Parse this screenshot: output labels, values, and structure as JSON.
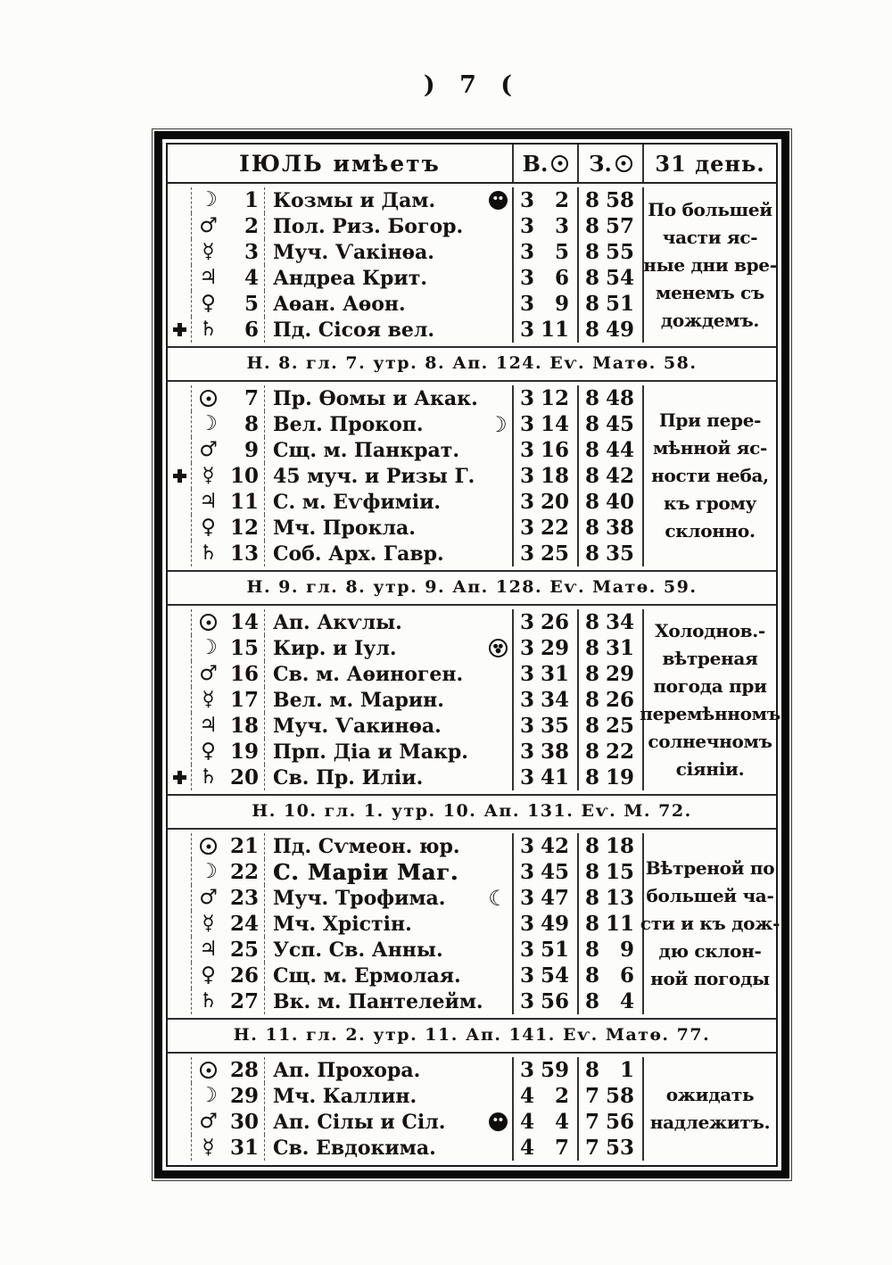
{
  "page": {
    "number": ") 7 ("
  },
  "header": {
    "month": "ІЮЛЬ имѣетъ",
    "rise": "В.",
    "set": "З.",
    "days": "31 день."
  },
  "icons": {
    "moon": "☽",
    "mars": "♂",
    "mercury": "☿",
    "jupiter": "♃",
    "venus": "♀",
    "saturn": "♄",
    "first_quarter": "☽",
    "last_quarter": "☾"
  },
  "weeks": [
    {
      "days": [
        {
          "cross": false,
          "planet": "moon",
          "day": "1",
          "name": "Козмы и Дам.",
          "moon": "new",
          "rise_h": "3",
          "rise_m": "2",
          "set_h": "8",
          "set_m": "58"
        },
        {
          "cross": false,
          "planet": "mars",
          "day": "2",
          "name": "Пол. Риз. Богор.",
          "moon": null,
          "rise_h": "3",
          "rise_m": "3",
          "set_h": "8",
          "set_m": "57"
        },
        {
          "cross": false,
          "planet": "mercury",
          "day": "3",
          "name": "Муч. Ѵакінѳа.",
          "moon": null,
          "rise_h": "3",
          "rise_m": "5",
          "set_h": "8",
          "set_m": "55"
        },
        {
          "cross": false,
          "planet": "jupiter",
          "day": "4",
          "name": "Андреа Крит.",
          "moon": null,
          "rise_h": "3",
          "rise_m": "6",
          "set_h": "8",
          "set_m": "54"
        },
        {
          "cross": false,
          "planet": "venus",
          "day": "5",
          "name": "Аѳан. Аѳон.",
          "moon": null,
          "rise_h": "3",
          "rise_m": "9",
          "set_h": "8",
          "set_m": "51"
        },
        {
          "cross": true,
          "planet": "saturn",
          "day": "6",
          "name": "Пд. Сісоя вел.",
          "moon": null,
          "rise_h": "3",
          "rise_m": "11",
          "set_h": "8",
          "set_m": "49"
        }
      ],
      "weather": [
        "По большей",
        "части яс-",
        "ные дни вре-",
        "менемъ съ",
        "дождемъ."
      ],
      "note": "Н. 8. гл. 7. утр. 8. Ап. 124. Еѵ. Матѳ. 58."
    },
    {
      "days": [
        {
          "cross": false,
          "planet": "sun",
          "day": "7",
          "name": "Пр. Ѳомы и Акак.",
          "moon": null,
          "rise_h": "3",
          "rise_m": "12",
          "set_h": "8",
          "set_m": "48"
        },
        {
          "cross": false,
          "planet": "moon",
          "day": "8",
          "name": "Вел. Прокоп.",
          "moon": "first",
          "rise_h": "3",
          "rise_m": "14",
          "set_h": "8",
          "set_m": "45"
        },
        {
          "cross": false,
          "planet": "mars",
          "day": "9",
          "name": "Сщ. м. Панкрат.",
          "moon": null,
          "rise_h": "3",
          "rise_m": "16",
          "set_h": "8",
          "set_m": "44"
        },
        {
          "cross": true,
          "planet": "mercury",
          "day": "10",
          "name": "45 муч. и Ризы Г.",
          "moon": null,
          "rise_h": "3",
          "rise_m": "18",
          "set_h": "8",
          "set_m": "42"
        },
        {
          "cross": false,
          "planet": "jupiter",
          "day": "11",
          "name": "С. м. Еѵфиміи.",
          "moon": null,
          "rise_h": "3",
          "rise_m": "20",
          "set_h": "8",
          "set_m": "40"
        },
        {
          "cross": false,
          "planet": "venus",
          "day": "12",
          "name": "Мч. Прокла.",
          "moon": null,
          "rise_h": "3",
          "rise_m": "22",
          "set_h": "8",
          "set_m": "38"
        },
        {
          "cross": false,
          "planet": "saturn",
          "day": "13",
          "name": "Соб. Арх. Гавр.",
          "moon": null,
          "rise_h": "3",
          "rise_m": "25",
          "set_h": "8",
          "set_m": "35"
        }
      ],
      "weather": [
        "При пере-",
        "мѣнной яс-",
        "ности неба,",
        "къ грому",
        "склонно."
      ],
      "note": "Н. 9. гл. 8. утр. 9. Ап. 128. Еѵ. Матѳ. 59."
    },
    {
      "days": [
        {
          "cross": false,
          "planet": "sun",
          "day": "14",
          "name": "Ап. Акѵлы.",
          "moon": null,
          "rise_h": "3",
          "rise_m": "26",
          "set_h": "8",
          "set_m": "34"
        },
        {
          "cross": false,
          "planet": "moon",
          "day": "15",
          "name": "Кир. и Іул.",
          "moon": "full",
          "rise_h": "3",
          "rise_m": "29",
          "set_h": "8",
          "set_m": "31"
        },
        {
          "cross": false,
          "planet": "mars",
          "day": "16",
          "name": "Св. м. Аѳиноген.",
          "moon": null,
          "rise_h": "3",
          "rise_m": "31",
          "set_h": "8",
          "set_m": "29"
        },
        {
          "cross": false,
          "planet": "mercury",
          "day": "17",
          "name": "Вел. м. Марин.",
          "moon": null,
          "rise_h": "3",
          "rise_m": "34",
          "set_h": "8",
          "set_m": "26"
        },
        {
          "cross": false,
          "planet": "jupiter",
          "day": "18",
          "name": "Муч. Ѵакинѳа.",
          "moon": null,
          "rise_h": "3",
          "rise_m": "35",
          "set_h": "8",
          "set_m": "25"
        },
        {
          "cross": false,
          "planet": "venus",
          "day": "19",
          "name": "Прп. Діа и Макр.",
          "moon": null,
          "rise_h": "3",
          "rise_m": "38",
          "set_h": "8",
          "set_m": "22"
        },
        {
          "cross": true,
          "planet": "saturn",
          "day": "20",
          "name": "Св. Пр. Иліи.",
          "moon": null,
          "rise_h": "3",
          "rise_m": "41",
          "set_h": "8",
          "set_m": "19"
        }
      ],
      "weather": [
        "Холоднов.-",
        "вѣтреная",
        "погода при",
        "перемѣнномъ",
        "солнечномъ",
        "сіяніи."
      ],
      "note": "Н. 10. гл. 1. утр. 10. Ап. 131. Еѵ. М. 72."
    },
    {
      "days": [
        {
          "cross": false,
          "planet": "sun",
          "day": "21",
          "name": "Пд. Сѵмеон. юр.",
          "moon": null,
          "rise_h": "3",
          "rise_m": "42",
          "set_h": "8",
          "set_m": "18"
        },
        {
          "cross": false,
          "planet": "moon",
          "day": "22",
          "name": "С. Маріи Маг.",
          "moon": null,
          "bold": true,
          "rise_h": "3",
          "rise_m": "45",
          "set_h": "8",
          "set_m": "15"
        },
        {
          "cross": false,
          "planet": "mars",
          "day": "23",
          "name": "Муч. Трофима.",
          "moon": "last",
          "rise_h": "3",
          "rise_m": "47",
          "set_h": "8",
          "set_m": "13"
        },
        {
          "cross": false,
          "planet": "mercury",
          "day": "24",
          "name": "Мч. Хрістін.",
          "moon": null,
          "rise_h": "3",
          "rise_m": "49",
          "set_h": "8",
          "set_m": "11"
        },
        {
          "cross": false,
          "planet": "jupiter",
          "day": "25",
          "name": "Усп. Св. Анны.",
          "moon": null,
          "rise_h": "3",
          "rise_m": "51",
          "set_h": "8",
          "set_m": "9"
        },
        {
          "cross": false,
          "planet": "venus",
          "day": "26",
          "name": "Сщ. м. Ермолая.",
          "moon": null,
          "rise_h": "3",
          "rise_m": "54",
          "set_h": "8",
          "set_m": "6"
        },
        {
          "cross": false,
          "planet": "saturn",
          "day": "27",
          "name": "Вк. м. Пантелейм.",
          "moon": null,
          "rise_h": "3",
          "rise_m": "56",
          "set_h": "8",
          "set_m": "4"
        }
      ],
      "weather": [
        "Вѣтреной по",
        "большей ча-",
        "сти и къ дож-",
        "дю склон-",
        "ной погоды"
      ],
      "note": "Н. 11. гл. 2. утр. 11. Ап. 141. Еѵ. Матѳ. 77."
    },
    {
      "days": [
        {
          "cross": false,
          "planet": "sun",
          "day": "28",
          "name": "Ап. Прохора.",
          "moon": null,
          "rise_h": "3",
          "rise_m": "59",
          "set_h": "8",
          "set_m": "1"
        },
        {
          "cross": false,
          "planet": "moon",
          "day": "29",
          "name": "Мч. Каллин.",
          "moon": null,
          "rise_h": "4",
          "rise_m": "2",
          "set_h": "7",
          "set_m": "58"
        },
        {
          "cross": false,
          "planet": "mars",
          "day": "30",
          "name": "Ап. Сілы и Сіл.",
          "moon": "new",
          "rise_h": "4",
          "rise_m": "4",
          "set_h": "7",
          "set_m": "56"
        },
        {
          "cross": false,
          "planet": "mercury",
          "day": "31",
          "name": "Св. Евдокима.",
          "moon": null,
          "rise_h": "4",
          "rise_m": "7",
          "set_h": "7",
          "set_m": "53"
        }
      ],
      "weather": [
        "ожидать",
        "надлежитъ."
      ],
      "note": null
    }
  ]
}
